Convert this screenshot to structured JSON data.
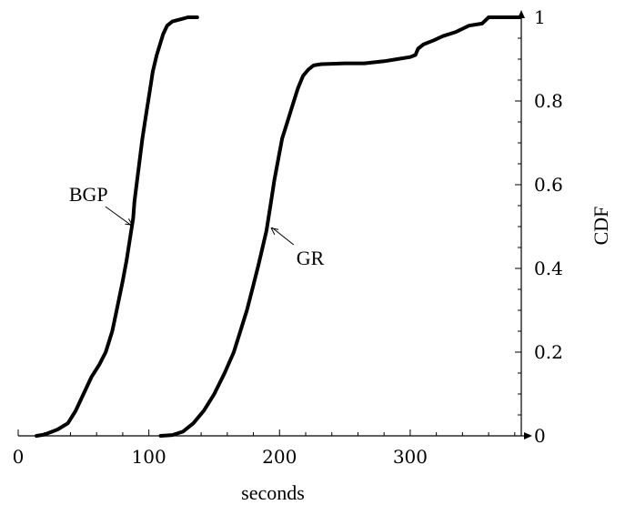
{
  "chart_data": {
    "type": "line",
    "title": "",
    "xlabel": "seconds",
    "ylabel": "CDF",
    "xlim": [
      0,
      385
    ],
    "ylim": [
      0,
      1
    ],
    "xticks": [
      0,
      100,
      200,
      300
    ],
    "yticks": [
      0,
      0.2,
      0.4,
      0.6,
      0.8,
      1
    ],
    "x_tick_labels": [
      "0",
      "100",
      "200",
      "300"
    ],
    "y_tick_labels": [
      "0",
      "0.2",
      "0.4",
      "0.6",
      "0.8",
      "1"
    ],
    "y_axis_side": "right",
    "grid": false,
    "series": [
      {
        "name": "BGP",
        "x": [
          14,
          20,
          30,
          38,
          44,
          50,
          56,
          62,
          67,
          72,
          76,
          80,
          83,
          86,
          88,
          89,
          91,
          93,
          95,
          97,
          99,
          101,
          103,
          106,
          108,
          111,
          114,
          118,
          124,
          130,
          137
        ],
        "y": [
          0,
          0.003,
          0.015,
          0.03,
          0.06,
          0.1,
          0.14,
          0.17,
          0.2,
          0.25,
          0.31,
          0.37,
          0.42,
          0.48,
          0.52,
          0.56,
          0.61,
          0.66,
          0.71,
          0.75,
          0.79,
          0.83,
          0.87,
          0.91,
          0.93,
          0.96,
          0.98,
          0.99,
          0.995,
          1.0,
          1.0
        ]
      },
      {
        "name": "GR",
        "x": [
          109,
          118,
          126,
          134,
          142,
          150,
          158,
          165,
          170,
          175,
          180,
          184,
          187,
          190,
          192,
          194,
          196,
          199,
          202,
          206,
          210,
          214,
          218,
          222,
          226,
          232,
          240,
          250,
          265,
          280,
          290,
          300,
          304,
          306,
          310,
          318,
          325,
          335,
          345,
          355,
          360,
          370,
          384
        ],
        "y": [
          0,
          0.002,
          0.01,
          0.03,
          0.06,
          0.1,
          0.15,
          0.2,
          0.25,
          0.3,
          0.36,
          0.41,
          0.45,
          0.49,
          0.53,
          0.57,
          0.61,
          0.66,
          0.71,
          0.75,
          0.79,
          0.83,
          0.86,
          0.875,
          0.885,
          0.888,
          0.889,
          0.89,
          0.89,
          0.895,
          0.9,
          0.905,
          0.91,
          0.925,
          0.935,
          0.945,
          0.955,
          0.965,
          0.98,
          0.985,
          1.0,
          1.0,
          1.0
        ]
      }
    ],
    "annotations": [
      {
        "text": "BGP",
        "series": "BGP",
        "point": [
          89,
          0.5
        ],
        "position": "upper-left"
      },
      {
        "text": "GR",
        "series": "GR",
        "point": [
          192,
          0.5
        ],
        "position": "lower-right"
      }
    ]
  }
}
